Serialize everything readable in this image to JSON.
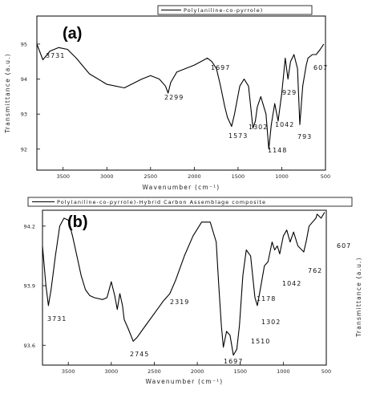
{
  "chart_data": [
    {
      "type": "line",
      "panel_label": "(a)",
      "legend": [
        "Poly(aniline-co-pyrrole)"
      ],
      "legend_position": "top-right",
      "xlabel": "Wavenumber (cm⁻¹)",
      "ylabel": "Transmittance (a.u.)",
      "xlim": [
        3800,
        500
      ],
      "ylim": [
        91.4,
        95.8
      ],
      "xticks": [
        "3500",
        "3000",
        "2500",
        "2000",
        "1500",
        "1000",
        "500"
      ],
      "yticks": [
        "95",
        "94",
        "93",
        "92"
      ],
      "grid": false,
      "series": [
        {
          "name": "Poly(aniline-co-pyrrole)",
          "x": [
            3800,
            3731,
            3650,
            3550,
            3450,
            3350,
            3200,
            3000,
            2800,
            2600,
            2500,
            2400,
            2330,
            2299,
            2270,
            2200,
            2000,
            1850,
            1800,
            1747,
            1700,
            1650,
            1620,
            1573,
            1540,
            1480,
            1430,
            1380,
            1330,
            1302,
            1280,
            1240,
            1180,
            1148,
            1120,
            1080,
            1042,
            1000,
            960,
            929,
            900,
            860,
            820,
            793,
            760,
            720,
            700,
            650,
            607,
            560,
            520
          ],
          "y": [
            95.0,
            94.55,
            94.8,
            94.9,
            94.85,
            94.6,
            94.15,
            93.85,
            93.75,
            94.0,
            94.1,
            94.0,
            93.8,
            93.6,
            93.9,
            94.2,
            94.4,
            94.6,
            94.5,
            94.3,
            93.8,
            93.2,
            92.9,
            92.65,
            93.0,
            93.8,
            94.0,
            93.8,
            92.6,
            92.8,
            93.2,
            93.5,
            93.0,
            92.0,
            92.7,
            93.3,
            92.8,
            93.6,
            94.6,
            94.0,
            94.5,
            94.7,
            94.3,
            92.7,
            93.8,
            94.4,
            94.6,
            94.7,
            94.7,
            94.85,
            95.0
          ]
        }
      ],
      "annotations": [
        "3731",
        "2299",
        "1697",
        "1573",
        "1302",
        "1148",
        "1042",
        "929",
        "793",
        "607"
      ]
    },
    {
      "type": "line",
      "panel_label": "(b)",
      "legend": [
        "Poly(aniline-co-pyrrole)-Hybrid Carbon Assemblage composite"
      ],
      "legend_position": "top",
      "xlabel": "Wavenumber (cm⁻¹)",
      "ylabel": "Transmittance (a.u.)",
      "xlim": [
        3800,
        500
      ],
      "ylim": [
        93.5,
        94.28
      ],
      "xticks": [
        "3500",
        "3000",
        "2500",
        "2000",
        "1500",
        "1000",
        "500"
      ],
      "yticks": [
        "94.2",
        "93.9",
        "93.6"
      ],
      "grid": false,
      "series": [
        {
          "name": "Poly(aniline-co-pyrrole)-Hybrid Carbon Assemblage composite",
          "x": [
            3800,
            3760,
            3731,
            3700,
            3650,
            3600,
            3550,
            3500,
            3450,
            3400,
            3350,
            3300,
            3250,
            3200,
            3100,
            3050,
            3000,
            2960,
            2930,
            2900,
            2870,
            2850,
            2800,
            2745,
            2700,
            2600,
            2500,
            2400,
            2319,
            2250,
            2150,
            2050,
            1950,
            1850,
            1780,
            1750,
            1720,
            1697,
            1660,
            1620,
            1580,
            1540,
            1510,
            1470,
            1430,
            1380,
            1330,
            1302,
            1260,
            1220,
            1178,
            1130,
            1100,
            1070,
            1042,
            1000,
            960,
            920,
            880,
            830,
            762,
            730,
            700,
            660,
            620,
            607,
            560,
            520
          ],
          "y": [
            94.1,
            93.9,
            93.8,
            93.88,
            94.05,
            94.2,
            94.24,
            94.23,
            94.15,
            94.05,
            93.95,
            93.88,
            93.85,
            93.84,
            93.83,
            93.84,
            93.92,
            93.85,
            93.78,
            93.86,
            93.8,
            93.73,
            93.68,
            93.62,
            93.64,
            93.7,
            93.76,
            93.82,
            93.86,
            93.93,
            94.05,
            94.15,
            94.22,
            94.22,
            94.12,
            93.9,
            93.7,
            93.59,
            93.67,
            93.65,
            93.55,
            93.58,
            93.7,
            93.95,
            94.08,
            94.05,
            93.84,
            93.8,
            93.9,
            94.0,
            94.02,
            94.12,
            94.08,
            94.1,
            94.06,
            94.15,
            94.18,
            94.12,
            94.17,
            94.1,
            94.07,
            94.13,
            94.2,
            94.22,
            94.24,
            94.26,
            94.24,
            94.27
          ]
        }
      ],
      "annotations": [
        "3731",
        "2745",
        "2319",
        "1697",
        "1510",
        "1302",
        "1178",
        "1042",
        "762",
        "607"
      ]
    }
  ]
}
